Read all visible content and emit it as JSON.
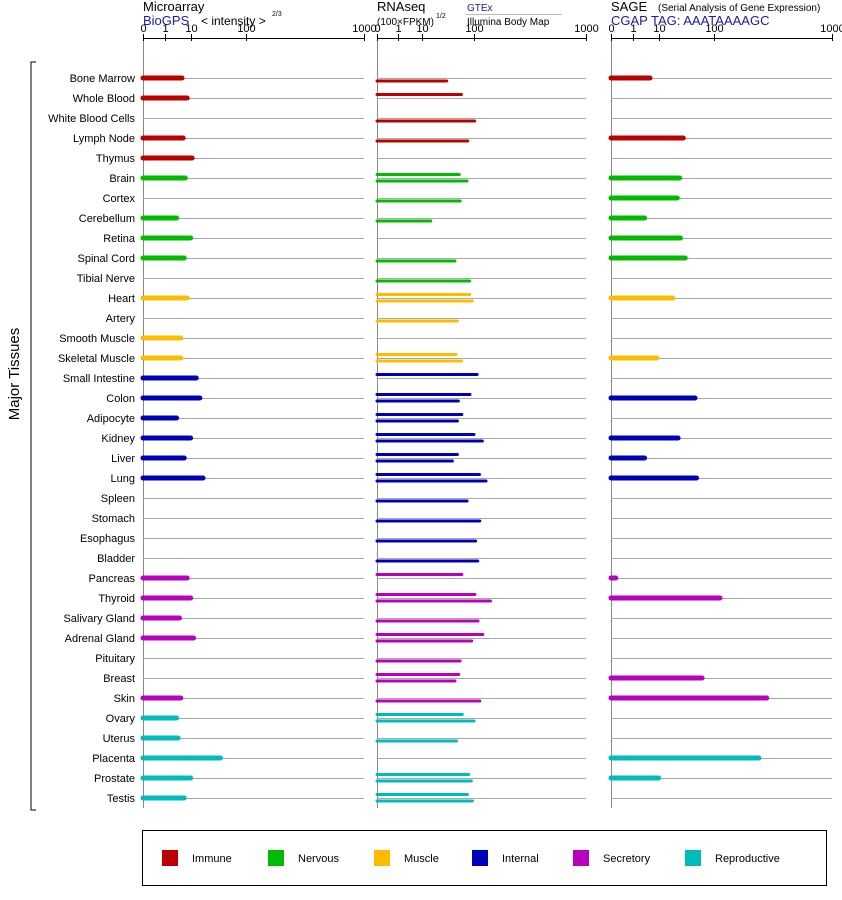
{
  "header": {
    "microarray": {
      "title": "Microarray",
      "source": "BioGPS",
      "unit": "< intensity >",
      "exponent": "2/3"
    },
    "rnaseq": {
      "title": "RNAseq",
      "unit": "(100×FPKM)",
      "exponent": "1/2",
      "source": "GTEx",
      "source2": "Illumina Body Map"
    },
    "sage": {
      "title": "SAGE",
      "subtitle": "(Serial Analysis of Gene Expression)",
      "tag": "CGAP TAG: AAATAAAAGC"
    }
  },
  "y_axis_title": "Major Tissues",
  "colors": {
    "Immune": "#bb0000",
    "Nervous": "#00bb00",
    "Muscle": "#ffbb00",
    "Internal": "#0000bb",
    "Secretory": "#bb00bb",
    "Reproductive": "#00bbbb"
  },
  "legend": [
    "Immune",
    "Nervous",
    "Muscle",
    "Internal",
    "Secretory",
    "Reproductive"
  ],
  "chart_data": {
    "type": "bar",
    "orientation": "horizontal",
    "scale": "nonlinear (power)",
    "xlim": [
      0,
      1000
    ],
    "ticks": [
      "0",
      "1",
      "10",
      "100",
      "1000"
    ],
    "tissues": [
      {
        "name": "Bone Marrow",
        "group": "Immune",
        "micro": 5.5,
        "rna": [
          null,
          37
        ],
        "sage": 5.5
      },
      {
        "name": "Whole Blood",
        "group": "Immune",
        "micro": 8,
        "rna": [
          66,
          null
        ],
        "sage": null
      },
      {
        "name": "White Blood Cells",
        "group": "Immune",
        "micro": null,
        "rna": [
          null,
          102
        ],
        "sage": null
      },
      {
        "name": "Lymph Node",
        "group": "Immune",
        "micro": 6,
        "rna": [
          null,
          82
        ],
        "sage": 35
      },
      {
        "name": "Thymus",
        "group": "Immune",
        "micro": 11,
        "rna": [
          null,
          null
        ],
        "sage": null
      },
      {
        "name": "Brain",
        "group": "Nervous",
        "micro": 7,
        "rna": [
          61,
          80
        ],
        "sage": 30
      },
      {
        "name": "Cortex",
        "group": "Nervous",
        "micro": null,
        "rna": [
          null,
          63
        ],
        "sage": 27
      },
      {
        "name": "Cerebellum",
        "group": "Nervous",
        "micro": 3.5,
        "rna": [
          null,
          17
        ],
        "sage": 3.5
      },
      {
        "name": "Retina",
        "group": "Nervous",
        "micro": 10,
        "rna": [
          null,
          null
        ],
        "sage": 31
      },
      {
        "name": "Spinal Cord",
        "group": "Nervous",
        "micro": 6.5,
        "rna": [
          null,
          52
        ],
        "sage": 38
      },
      {
        "name": "Tibial Nerve",
        "group": "Nervous",
        "micro": null,
        "rna": [
          null,
          87
        ],
        "sage": null
      },
      {
        "name": "Heart",
        "group": "Muscle",
        "micro": 8,
        "rna": [
          87,
          95
        ],
        "sage": 22
      },
      {
        "name": "Artery",
        "group": "Muscle",
        "micro": null,
        "rna": [
          null,
          57
        ],
        "sage": null
      },
      {
        "name": "Smooth Muscle",
        "group": "Muscle",
        "micro": 5,
        "rna": [
          null,
          null
        ],
        "sage": null
      },
      {
        "name": "Skeletal Muscle",
        "group": "Muscle",
        "micro": 5,
        "rna": [
          54,
          66
        ],
        "sage": 9
      },
      {
        "name": "Small Intestine",
        "group": "Internal",
        "micro": 14,
        "rna": [
          110,
          null
        ],
        "sage": null
      },
      {
        "name": "Colon",
        "group": "Internal",
        "micro": 17,
        "rna": [
          88,
          59
        ],
        "sage": 55
      },
      {
        "name": "Adipocyte",
        "group": "Internal",
        "micro": 3.5,
        "rna": [
          67,
          57
        ],
        "sage": null
      },
      {
        "name": "Kidney",
        "group": "Internal",
        "micro": 10,
        "rna": [
          100,
          128
        ],
        "sage": 28
      },
      {
        "name": "Liver",
        "group": "Internal",
        "micro": 6.5,
        "rna": [
          57,
          47
        ],
        "sage": 3.5
      },
      {
        "name": "Lung",
        "group": "Internal",
        "micro": 20,
        "rna": [
          118,
          142
        ],
        "sage": 58
      },
      {
        "name": "Spleen",
        "group": "Internal",
        "micro": null,
        "rna": [
          null,
          80
        ],
        "sage": null
      },
      {
        "name": "Stomach",
        "group": "Internal",
        "micro": null,
        "rna": [
          null,
          119
        ],
        "sage": null
      },
      {
        "name": "Esophagus",
        "group": "Internal",
        "micro": null,
        "rna": [
          null,
          105
        ],
        "sage": null
      },
      {
        "name": "Bladder",
        "group": "Internal",
        "micro": null,
        "rna": [
          null,
          112
        ],
        "sage": null
      },
      {
        "name": "Pancreas",
        "group": "Secretory",
        "micro": 8,
        "rna": [
          67,
          null
        ],
        "sage": 0.01
      },
      {
        "name": "Thyroid",
        "group": "Secretory",
        "micro": 10,
        "rna": [
          103,
          160
        ],
        "sage": 120
      },
      {
        "name": "Salivary Gland",
        "group": "Secretory",
        "micro": 4.5,
        "rna": [
          null,
          113
        ],
        "sage": null
      },
      {
        "name": "Adrenal Gland",
        "group": "Secretory",
        "micro": 12,
        "rna": [
          130,
          93
        ],
        "sage": null
      },
      {
        "name": "Pituitary",
        "group": "Secretory",
        "micro": null,
        "rna": [
          null,
          63
        ],
        "sage": null
      },
      {
        "name": "Breast",
        "group": "Secretory",
        "micro": null,
        "rna": [
          60,
          52
        ],
        "sage": 70
      },
      {
        "name": "Skin",
        "group": "Secretory",
        "micro": 5,
        "rna": [
          null,
          119
        ],
        "sage": 350
      },
      {
        "name": "Ovary",
        "group": "Reproductive",
        "micro": 3.5,
        "rna": [
          68,
          100
        ],
        "sage": null
      },
      {
        "name": "Uterus",
        "group": "Reproductive",
        "micro": 4,
        "rna": [
          null,
          55
        ],
        "sage": null
      },
      {
        "name": "Placenta",
        "group": "Reproductive",
        "micro": 43,
        "rna": [
          null,
          null
        ],
        "sage": 300
      },
      {
        "name": "Prostate",
        "group": "Reproductive",
        "micro": 10,
        "rna": [
          84,
          92
        ],
        "sage": 10
      },
      {
        "name": "Testis",
        "group": "Reproductive",
        "micro": 6.5,
        "rna": [
          81,
          95
        ],
        "sage": null
      }
    ]
  }
}
